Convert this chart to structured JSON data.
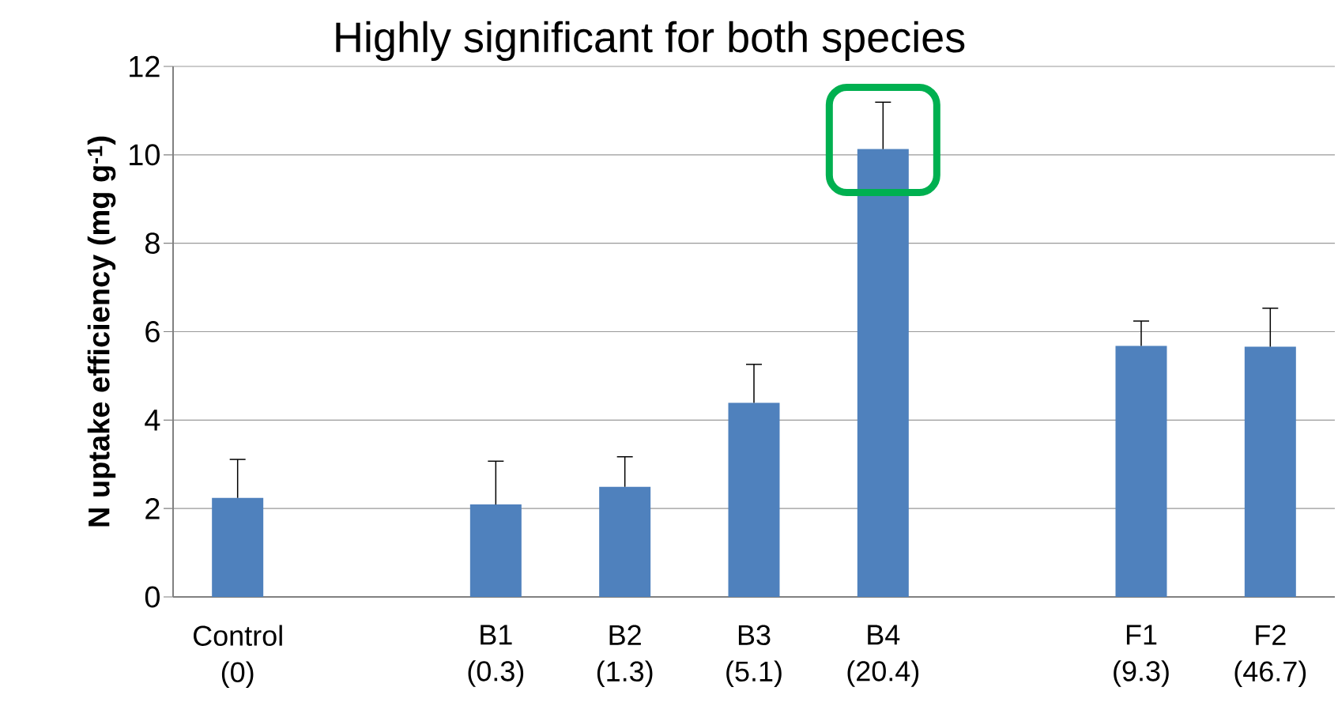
{
  "chart_data": {
    "type": "bar",
    "title": "Highly significant for both species",
    "ylabel": "N uptake efficiency (mg g$^{-1}$)",
    "categories": [
      "Control (0)",
      null,
      "B1 (0.3)",
      "B2 (1.3)",
      "B3 (5.1)",
      "B4 (20.4)",
      null,
      "F1 (9.3)",
      "F2 (46.7)"
    ],
    "values": [
      2.24,
      null,
      2.09,
      2.49,
      4.39,
      10.13,
      null,
      5.68,
      5.66
    ],
    "errors": [
      0.87,
      null,
      0.98,
      0.68,
      0.87,
      1.06,
      null,
      0.56,
      0.87
    ],
    "color": "#4f81bd",
    "ylim": [
      0,
      12
    ],
    "yticks": [
      0,
      2,
      4,
      6,
      8,
      10,
      12
    ],
    "grid": "y"
  }
}
